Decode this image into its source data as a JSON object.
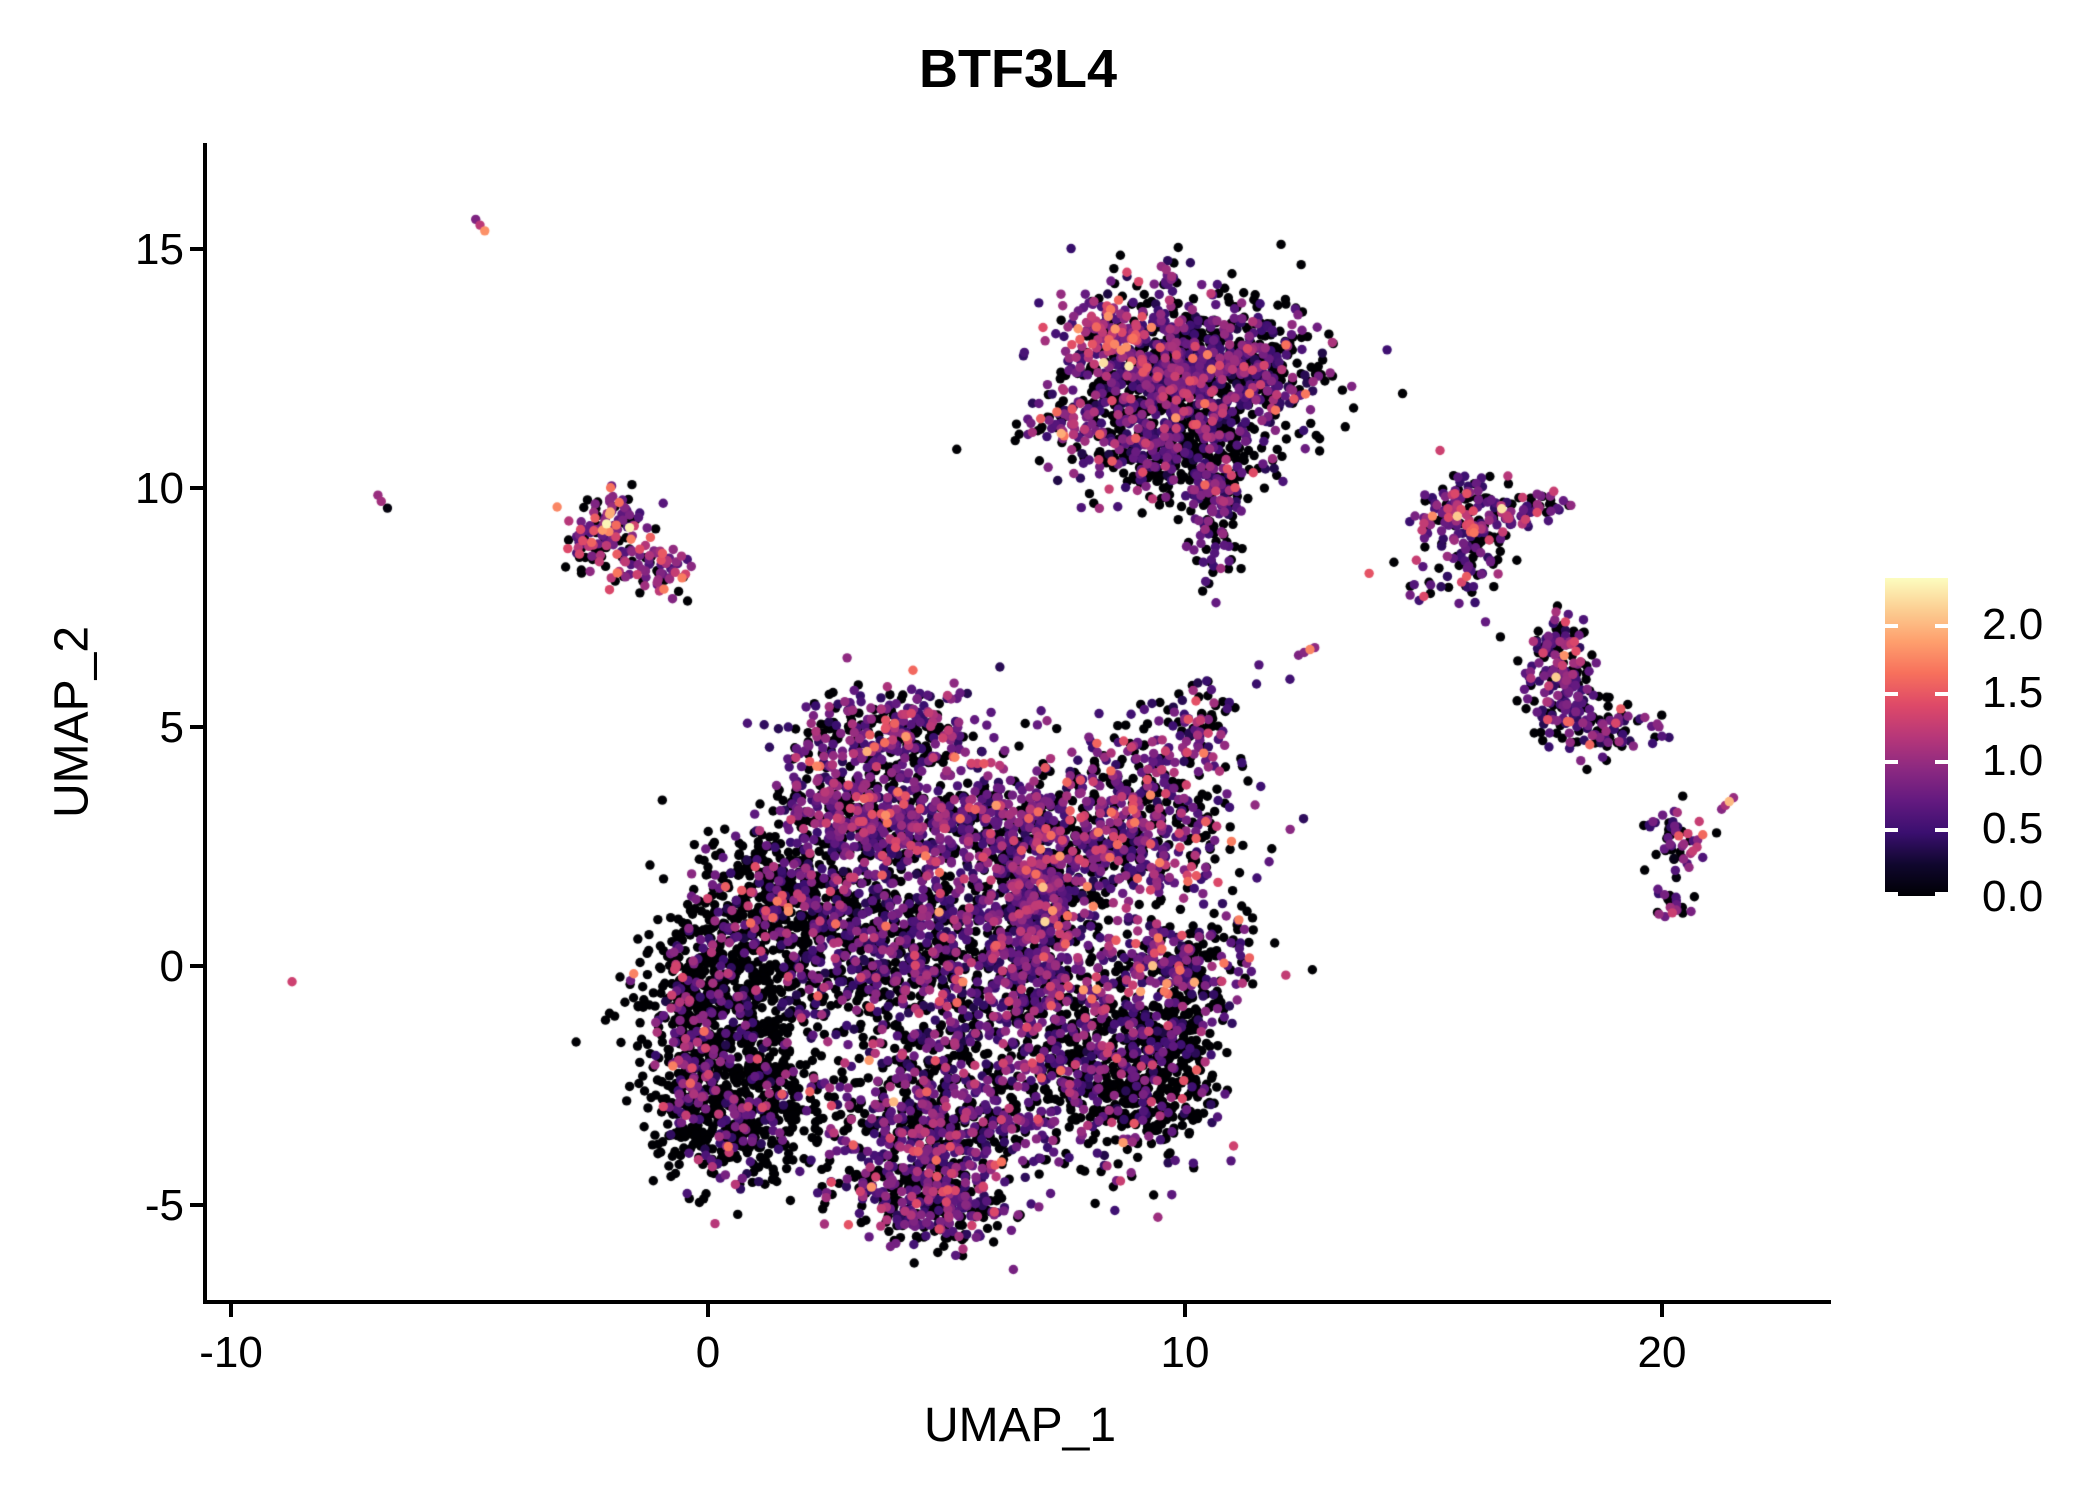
{
  "title": "BTF3L4",
  "axes": {
    "x": {
      "label": "UMAP_1",
      "tick_labels": [
        "-10",
        "0",
        "10",
        "20"
      ],
      "tick_values": [
        -10,
        0,
        10,
        20
      ]
    },
    "y": {
      "label": "UMAP_2",
      "tick_labels": [
        "15",
        "10",
        "5",
        "0",
        "-5"
      ],
      "tick_values": [
        15,
        10,
        5,
        0,
        -5
      ]
    }
  },
  "legend": {
    "tick_labels": [
      "2.0",
      "1.5",
      "1.0",
      "0.5",
      "0.0"
    ],
    "tick_values": [
      2.0,
      1.5,
      1.0,
      0.5,
      0.0
    ],
    "min_value": 0,
    "max_value": 2.34,
    "colormap": "magma"
  },
  "chart_data": {
    "type": "scatter",
    "title": "BTF3L4",
    "xlabel": "UMAP_1",
    "ylabel": "UMAP_2",
    "xlim": [
      -10.55,
      23.5
    ],
    "ylim": [
      -7.05,
      17.2
    ],
    "grid": false,
    "legend_position": "right",
    "point_radius_px": 4.7,
    "n_points_approx": 9900,
    "color_scale": {
      "name": "magma",
      "domain": [
        0,
        2.34
      ],
      "anchors": [
        {
          "t": 0.0,
          "hex": "#000004"
        },
        {
          "t": 0.1,
          "hex": "#10072E"
        },
        {
          "t": 0.2,
          "hex": "#3B0F70"
        },
        {
          "t": 0.3,
          "hex": "#641A80"
        },
        {
          "t": 0.4,
          "hex": "#8C2981"
        },
        {
          "t": 0.5,
          "hex": "#B73779"
        },
        {
          "t": 0.6,
          "hex": "#DE4968"
        },
        {
          "t": 0.7,
          "hex": "#F7705C"
        },
        {
          "t": 0.8,
          "hex": "#FE9F6D"
        },
        {
          "t": 0.9,
          "hex": "#FCCE92"
        },
        {
          "t": 1.0,
          "hex": "#FCFDBF"
        }
      ]
    },
    "clusters": [
      {
        "name": "main-left-dark-lobe",
        "cx": 0.4,
        "cy": -1.0,
        "sx": 0.9,
        "sy": 1.3,
        "n": 700,
        "zero_frac": 0.85,
        "hot": 0.03
      },
      {
        "name": "main-left-dark-bottom",
        "cx": 0.6,
        "cy": -3.1,
        "sx": 0.8,
        "sy": 0.7,
        "n": 380,
        "zero_frac": 0.8,
        "hot": 0.05
      },
      {
        "name": "main-left-rim-sprinkle",
        "cx": -0.45,
        "cy": -1.5,
        "sx": 0.28,
        "sy": 1.3,
        "n": 170,
        "zero_frac": 0.55,
        "hot": 0.35
      },
      {
        "name": "main-left-dark-top",
        "cx": 1.3,
        "cy": 1.4,
        "sx": 0.75,
        "sy": 0.8,
        "n": 320,
        "zero_frac": 0.8,
        "hot": 0.02
      },
      {
        "name": "main-center-body",
        "cx": 4.6,
        "cy": 0.2,
        "sx": 1.35,
        "sy": 1.15,
        "n": 850,
        "zero_frac": 0.5,
        "hot": 0.0
      },
      {
        "name": "main-center-left-sparse",
        "cx": 2.6,
        "cy": 1.2,
        "sx": 0.8,
        "sy": 0.8,
        "n": 250,
        "zero_frac": 0.55,
        "hot": 0.05
      },
      {
        "name": "main-upper-crest",
        "cx": 5.5,
        "cy": 3.0,
        "sx": 1.35,
        "sy": 0.5,
        "n": 450,
        "zero_frac": 0.3,
        "hot": 0.1
      },
      {
        "name": "main-left-shoulder",
        "cx": 2.9,
        "cy": 3.3,
        "sx": 0.85,
        "sy": 0.55,
        "n": 300,
        "zero_frac": 0.38,
        "hot": 0.12
      },
      {
        "name": "main-head-bump",
        "cx": 3.9,
        "cy": 4.8,
        "sx": 1.0,
        "sy": 0.5,
        "n": 330,
        "zero_frac": 0.4,
        "hot": 0.1
      },
      {
        "name": "main-magenta-spine",
        "cx": 6.9,
        "cy": 0.6,
        "sx": 0.5,
        "sy": 1.3,
        "n": 380,
        "zero_frac": 0.3,
        "hot": 0.12
      },
      {
        "name": "main-right-mound",
        "cx": 6.8,
        "cy": 1.8,
        "sx": 0.6,
        "sy": 0.6,
        "n": 250,
        "zero_frac": 0.45,
        "hot": 0.05
      },
      {
        "name": "main-right-pocket",
        "cx": 9.8,
        "cy": 0.1,
        "sx": 0.8,
        "sy": 0.5,
        "n": 250,
        "zero_frac": 0.4,
        "hot": 0.1
      },
      {
        "name": "main-bottom-right-lobe",
        "cx": 8.3,
        "cy": -1.9,
        "sx": 1.05,
        "sy": 1.1,
        "n": 620,
        "zero_frac": 0.55,
        "hot": 0.03
      },
      {
        "name": "main-br-lobe-right-fringe",
        "cx": 9.95,
        "cy": -1.4,
        "sx": 0.3,
        "sy": 0.8,
        "n": 120,
        "zero_frac": 0.85,
        "hot": 0.0
      },
      {
        "name": "main-br-lobe-bottom-fringe",
        "cx": 9.3,
        "cy": -2.6,
        "sx": 0.6,
        "sy": 0.6,
        "n": 180,
        "zero_frac": 0.9,
        "hot": 0.0
      },
      {
        "name": "main-bottom-region",
        "cx": 4.7,
        "cy": -3.4,
        "sx": 1.25,
        "sy": 0.95,
        "n": 700,
        "zero_frac": 0.5,
        "hot": 0.1
      },
      {
        "name": "main-bottom-tip",
        "cx": 4.6,
        "cy": -5.0,
        "sx": 0.75,
        "sy": 0.45,
        "n": 260,
        "zero_frac": 0.45,
        "hot": 0.15
      },
      {
        "name": "main-upper-right-appendage",
        "cx": 8.9,
        "cy": 3.0,
        "sx": 1.05,
        "sy": 0.9,
        "n": 560,
        "zero_frac": 0.4,
        "hot": 0.15
      },
      {
        "name": "main-appendage-arm",
        "cx": 10.1,
        "cy": 4.9,
        "sx": 0.5,
        "sy": 0.6,
        "n": 100,
        "zero_frac": 0.4,
        "hot": 0.05
      },
      {
        "name": "topmid-main",
        "cx": 10.0,
        "cy": 12.1,
        "sx": 1.3,
        "sy": 0.95,
        "n": 800,
        "zero_frac": 0.5,
        "hot": 0.0
      },
      {
        "name": "topmid-right-wing",
        "cx": 11.5,
        "cy": 12.7,
        "sx": 0.55,
        "sy": 0.55,
        "n": 200,
        "zero_frac": 0.6,
        "hot": 0.0
      },
      {
        "name": "topmid-dense-mid",
        "cx": 9.6,
        "cy": 12.6,
        "sx": 0.6,
        "sy": 0.55,
        "n": 250,
        "zero_frac": 0.35,
        "hot": 0.08
      },
      {
        "name": "topmid-orange-knob",
        "cx": 8.4,
        "cy": 13.4,
        "sx": 0.45,
        "sy": 0.4,
        "n": 130,
        "zero_frac": 0.22,
        "hot": 0.45
      },
      {
        "name": "topmid-top-streak",
        "cx": 9.6,
        "cy": 14.3,
        "sx": 0.12,
        "sy": 0.32,
        "n": 18,
        "zero_frac": 0.3,
        "hot": 0.1
      },
      {
        "name": "topmid-left-arm",
        "cx": 7.7,
        "cy": 11.4,
        "sx": 0.55,
        "sy": 0.22,
        "n": 55,
        "zero_frac": 0.3,
        "hot": 0.25
      },
      {
        "name": "topmid-lower",
        "cx": 9.5,
        "cy": 10.9,
        "sx": 0.9,
        "sy": 0.6,
        "n": 300,
        "zero_frac": 0.52,
        "hot": 0.0
      },
      {
        "name": "topmid-tail",
        "cx": 10.6,
        "cy": 9.7,
        "sx": 0.3,
        "sy": 0.8,
        "n": 130,
        "zero_frac": 0.45,
        "hot": 0.05
      },
      {
        "name": "upperleft-top",
        "cx": -1.9,
        "cy": 9.35,
        "sx": 0.45,
        "sy": 0.28,
        "n": 70,
        "zero_frac": 0.25,
        "hot": 0.45
      },
      {
        "name": "upperleft-left-arm",
        "cx": -2.55,
        "cy": 8.8,
        "sx": 0.25,
        "sy": 0.25,
        "n": 35,
        "zero_frac": 0.3,
        "hot": 0.5
      },
      {
        "name": "upperleft-chain",
        "cx": -1.85,
        "cy": 8.6,
        "sx": 0.25,
        "sy": 0.3,
        "n": 30,
        "zero_frac": 0.35,
        "hot": 0.3
      },
      {
        "name": "upperleft-bottom-right",
        "cx": -1.2,
        "cy": 8.25,
        "sx": 0.4,
        "sy": 0.3,
        "n": 60,
        "zero_frac": 0.3,
        "hot": 0.5
      },
      {
        "name": "right-upper-main",
        "cx": 15.8,
        "cy": 9.3,
        "sx": 0.5,
        "sy": 0.45,
        "n": 180,
        "zero_frac": 0.35,
        "hot": 0.2
      },
      {
        "name": "right-upper-arm-a",
        "cx": 16.9,
        "cy": 9.45,
        "sx": 0.35,
        "sy": 0.15,
        "n": 30,
        "zero_frac": 0.3,
        "hot": 0.2
      },
      {
        "name": "right-upper-arm-b",
        "cx": 17.6,
        "cy": 9.68,
        "sx": 0.3,
        "sy": 0.14,
        "n": 26,
        "zero_frac": 0.3,
        "hot": 0.25
      },
      {
        "name": "right-upper-scatter",
        "cx": 15.5,
        "cy": 8.3,
        "sx": 0.5,
        "sy": 0.5,
        "n": 40,
        "zero_frac": 0.45,
        "hot": 0.1
      },
      {
        "name": "right-lower-top",
        "cx": 17.8,
        "cy": 6.7,
        "sx": 0.35,
        "sy": 0.3,
        "n": 70,
        "zero_frac": 0.4,
        "hot": 0.1
      },
      {
        "name": "right-lower-mid",
        "cx": 17.9,
        "cy": 5.8,
        "sx": 0.4,
        "sy": 0.5,
        "n": 130,
        "zero_frac": 0.4,
        "hot": 0.1
      },
      {
        "name": "right-lower-arm",
        "cx": 18.9,
        "cy": 5.0,
        "sx": 0.55,
        "sy": 0.3,
        "n": 80,
        "zero_frac": 0.45,
        "hot": 0.1
      },
      {
        "name": "bottomright-y-cluster",
        "cx": 20.3,
        "cy": 2.6,
        "sx": 0.3,
        "sy": 0.3,
        "n": 50,
        "zero_frac": 0.4,
        "hot": 0.2
      },
      {
        "name": "bottomright-blob",
        "cx": 20.2,
        "cy": 1.35,
        "sx": 0.2,
        "sy": 0.2,
        "n": 22,
        "zero_frac": 0.35,
        "hot": 0.15
      }
    ],
    "extra_points": [
      [
        -4.87,
        15.62,
        0.85
      ],
      [
        -4.78,
        15.5,
        1.2
      ],
      [
        -4.68,
        15.38,
        1.8
      ],
      [
        -6.92,
        9.85,
        1.0
      ],
      [
        -6.85,
        9.72,
        1.05
      ],
      [
        -6.72,
        9.58,
        0.05
      ],
      [
        -8.72,
        -0.33,
        1.3
      ],
      [
        21.25,
        3.28,
        0.9
      ],
      [
        21.33,
        3.36,
        1.1
      ],
      [
        21.41,
        3.44,
        2.0
      ],
      [
        21.5,
        3.52,
        1.0
      ],
      [
        12.38,
        6.5,
        0.85
      ],
      [
        12.5,
        6.56,
        0.9
      ],
      [
        12.62,
        6.62,
        1.75
      ],
      [
        12.72,
        6.66,
        0.95
      ],
      [
        11.55,
        6.3,
        0.6
      ],
      [
        12.2,
        6.0,
        0.5
      ],
      [
        11.5,
        5.9,
        0.45
      ],
      [
        10.55,
        8.5,
        0.6
      ],
      [
        10.5,
        8.0,
        0.05
      ],
      [
        10.65,
        7.6,
        0.7
      ],
      [
        16.3,
        7.2,
        0.7
      ],
      [
        19.4,
        4.6,
        0.9
      ],
      [
        20.25,
        2.25,
        0.1
      ],
      [
        20.28,
        2.0,
        0.6
      ],
      [
        20.3,
        1.85,
        0.05
      ]
    ]
  }
}
